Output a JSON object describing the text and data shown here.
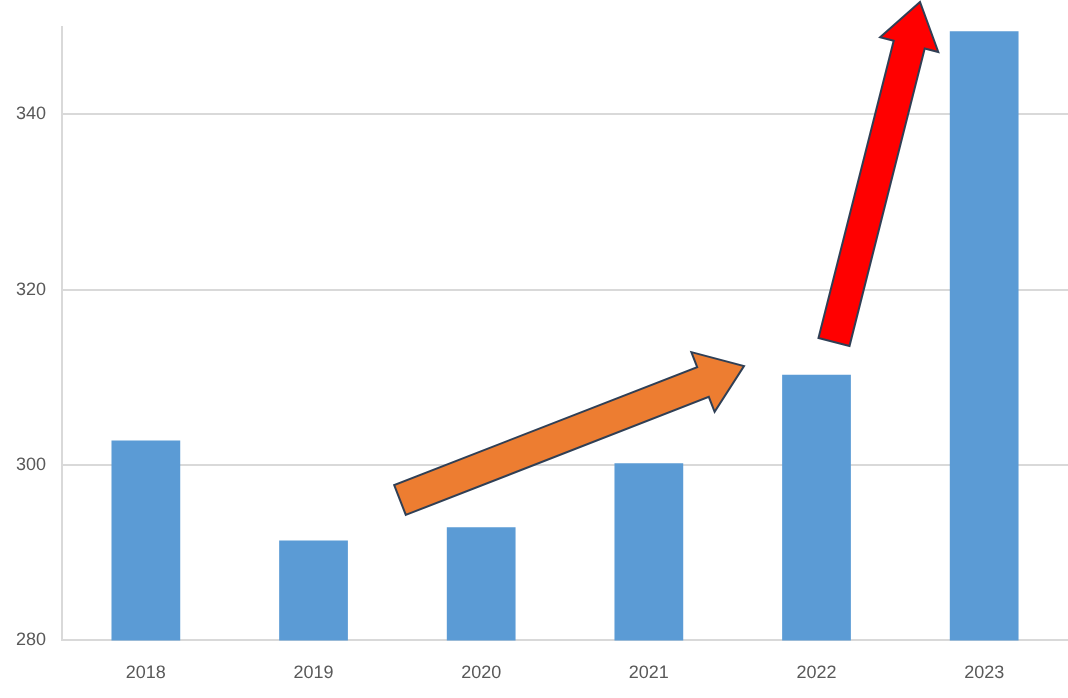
{
  "chart_data": {
    "type": "bar",
    "categories": [
      "2018",
      "2019",
      "2020",
      "2021",
      "2022",
      "2023"
    ],
    "values": [
      302.8,
      291.4,
      292.9,
      300.2,
      310.3,
      349.5
    ],
    "color": "#5b9bd5",
    "ylim": [
      280,
      350
    ],
    "yticks": [
      280,
      300,
      320,
      340
    ],
    "grid": "y",
    "legend": false
  }
}
